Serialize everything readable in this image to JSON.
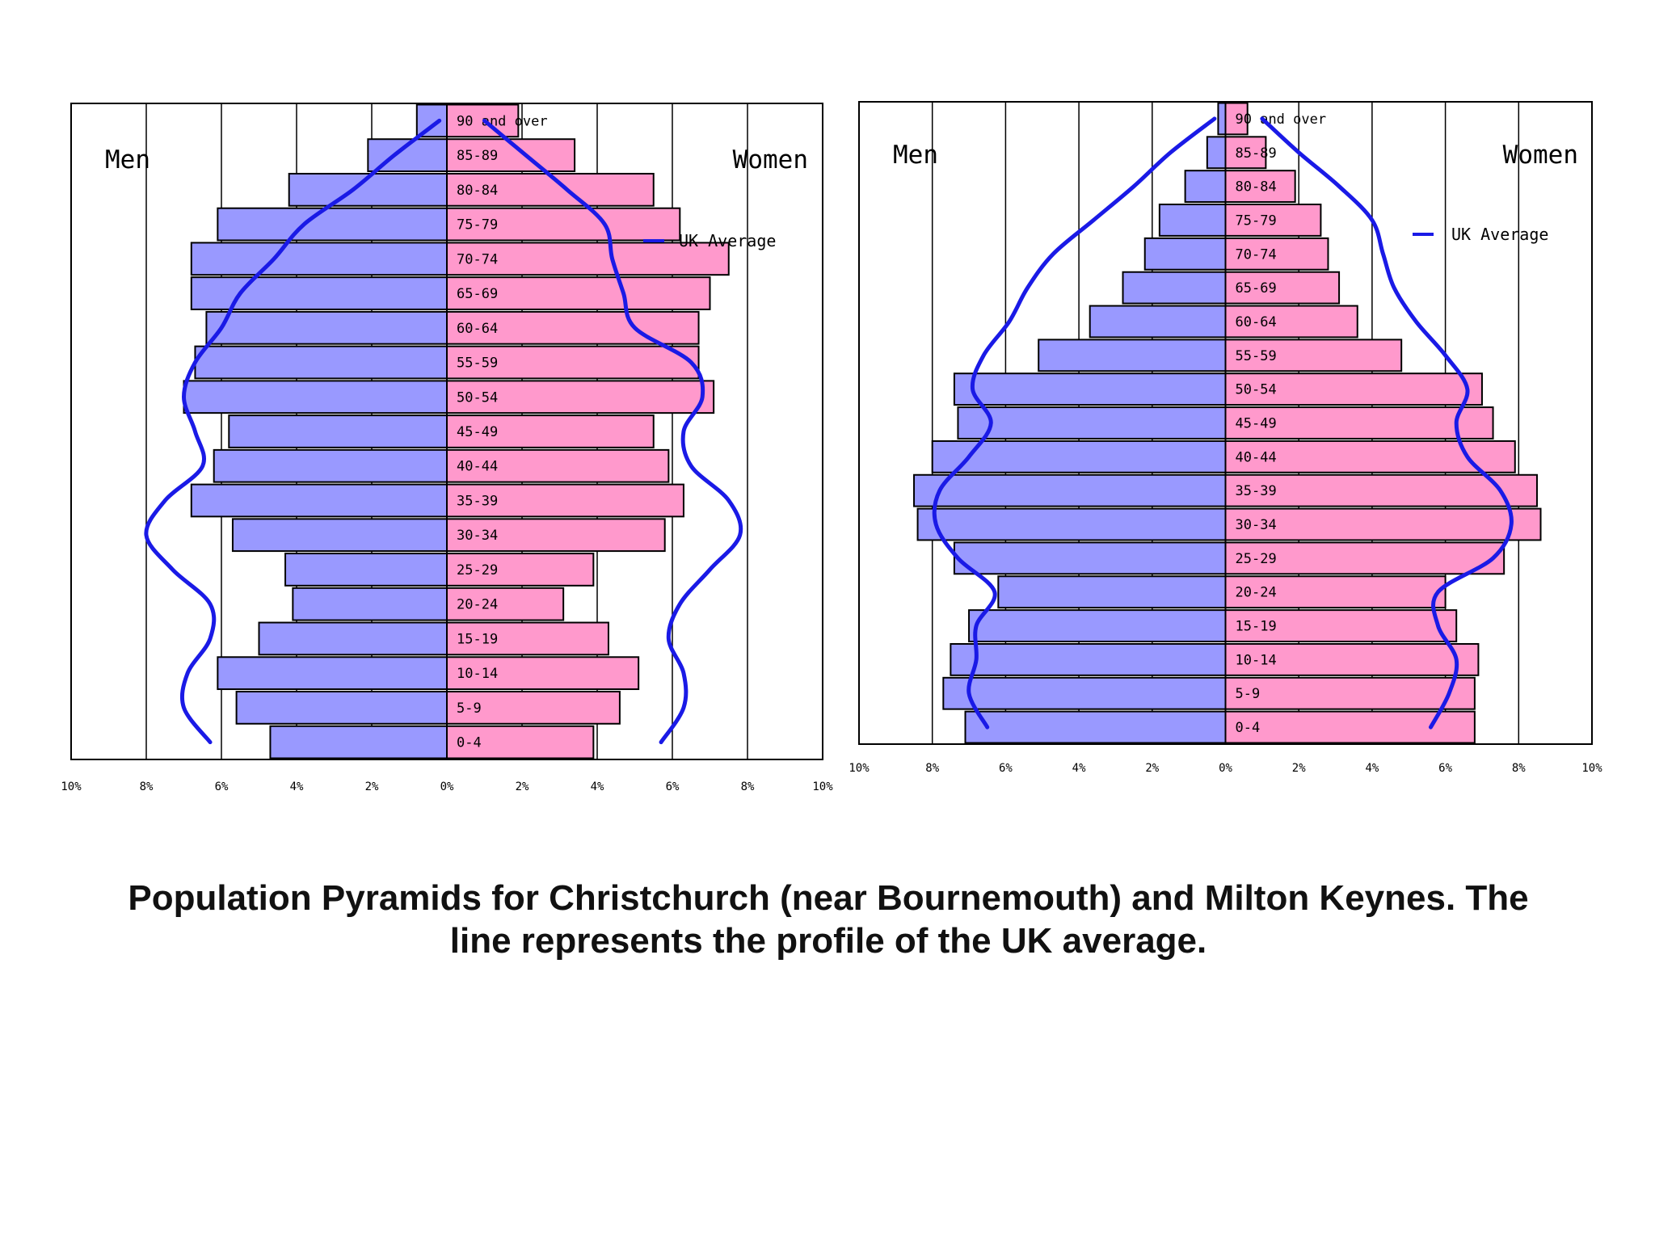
{
  "chart_data": [
    {
      "type": "bar",
      "side_labels": {
        "left": "Men",
        "right": "Women"
      },
      "legend": {
        "label": "UK Average",
        "placement": "top-right"
      },
      "xlim": [
        -10,
        10
      ],
      "x_ticks": [
        "10%",
        "8%",
        "6%",
        "4%",
        "2%",
        "0%",
        "2%",
        "4%",
        "6%",
        "8%",
        "10%"
      ],
      "categories": [
        "0-4",
        "5-9",
        "10-14",
        "15-19",
        "20-24",
        "25-29",
        "30-34",
        "35-39",
        "40-44",
        "45-49",
        "50-54",
        "55-59",
        "60-64",
        "65-69",
        "70-74",
        "75-79",
        "80-84",
        "85-89",
        "90 and over"
      ],
      "series": [
        {
          "name": "Men",
          "values": [
            4.7,
            5.6,
            6.1,
            5.0,
            4.1,
            4.3,
            5.7,
            6.8,
            6.2,
            5.8,
            7.0,
            6.7,
            6.4,
            6.8,
            6.8,
            6.1,
            4.2,
            2.1,
            0.8
          ]
        },
        {
          "name": "Women",
          "values": [
            3.9,
            4.6,
            5.1,
            4.3,
            3.1,
            3.9,
            5.8,
            6.3,
            5.9,
            5.5,
            7.1,
            6.7,
            6.7,
            7.0,
            7.5,
            6.2,
            5.5,
            3.4,
            1.9
          ]
        },
        {
          "name": "UK Average",
          "men": [
            6.3,
            7.0,
            6.9,
            6.3,
            6.3,
            7.3,
            8.0,
            7.5,
            6.5,
            6.7,
            7.0,
            6.7,
            6.0,
            5.5,
            4.6,
            3.8,
            2.5,
            1.4,
            0.2
          ],
          "women": [
            5.7,
            6.3,
            6.3,
            5.9,
            6.2,
            7.0,
            7.8,
            7.5,
            6.5,
            6.3,
            6.8,
            6.5,
            5.0,
            4.7,
            4.4,
            4.2,
            3.2,
            2.1,
            1.0
          ]
        }
      ]
    },
    {
      "type": "bar",
      "side_labels": {
        "left": "Men",
        "right": "Women"
      },
      "legend": {
        "label": "UK Average",
        "placement": "top-right"
      },
      "xlim": [
        -10,
        10
      ],
      "x_ticks": [
        "10%",
        "8%",
        "6%",
        "4%",
        "2%",
        "0%",
        "2%",
        "4%",
        "6%",
        "8%",
        "10%"
      ],
      "categories": [
        "0-4",
        "5-9",
        "10-14",
        "15-19",
        "20-24",
        "25-29",
        "30-34",
        "35-39",
        "40-44",
        "45-49",
        "50-54",
        "55-59",
        "60-64",
        "65-69",
        "70-74",
        "75-79",
        "80-84",
        "85-89",
        "90 and over"
      ],
      "series": [
        {
          "name": "Men",
          "values": [
            7.1,
            7.7,
            7.5,
            7.0,
            6.2,
            7.4,
            8.4,
            8.5,
            8.0,
            7.3,
            7.4,
            5.1,
            3.7,
            2.8,
            2.2,
            1.8,
            1.1,
            0.5,
            0.2
          ]
        },
        {
          "name": "Women",
          "values": [
            6.8,
            6.8,
            6.9,
            6.3,
            6.0,
            7.6,
            8.6,
            8.5,
            7.9,
            7.3,
            7.0,
            4.8,
            3.6,
            3.1,
            2.8,
            2.6,
            1.9,
            1.1,
            0.6
          ]
        },
        {
          "name": "UK Average",
          "men": [
            6.5,
            7.0,
            6.8,
            6.8,
            6.3,
            7.3,
            7.9,
            7.8,
            7.0,
            6.4,
            6.9,
            6.6,
            5.9,
            5.4,
            4.7,
            3.6,
            2.5,
            1.5,
            0.3
          ]
        },
        {
          "name": "UK Average",
          "women": [
            5.6,
            6.1,
            6.3,
            5.8,
            5.8,
            7.3,
            7.8,
            7.5,
            6.6,
            6.3,
            6.6,
            6.0,
            5.2,
            4.6,
            4.3,
            4.0,
            3.1,
            2.0,
            1.0
          ]
        }
      ]
    }
  ],
  "caption": {
    "line1": "Population Pyramids for Christchurch (near Bournemouth) and Milton Keynes. The",
    "line2": "line represents the profile of the UK average."
  },
  "colors": {
    "men_bar": "#9999ff",
    "women_bar": "#ff99cc",
    "uk_line": "#1a1ae6",
    "bar_outline": "#000000",
    "gridline": "#000000"
  }
}
